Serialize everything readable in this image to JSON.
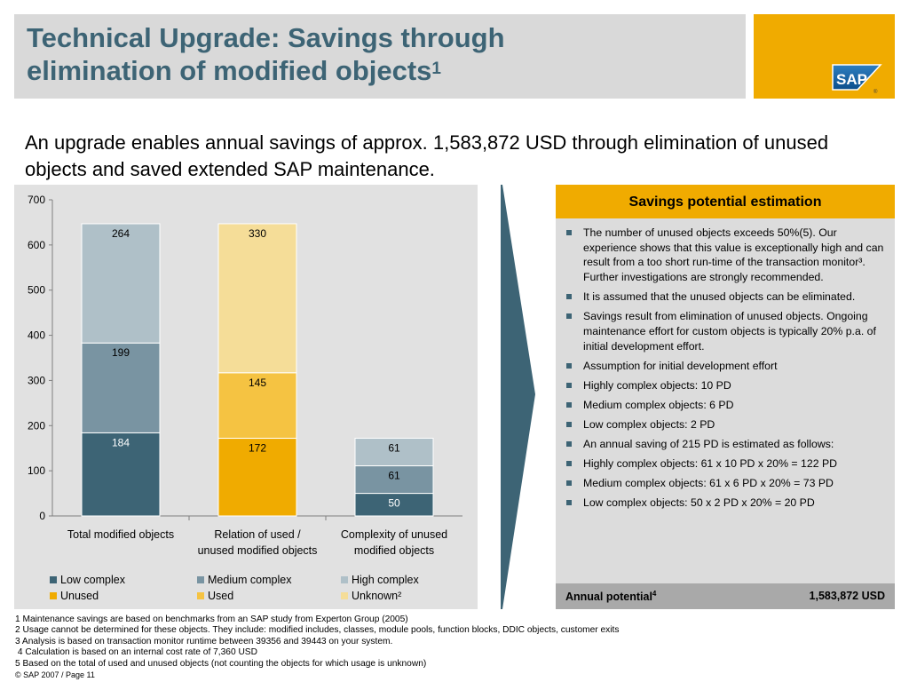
{
  "header": {
    "title_line1": "Technical Upgrade: Savings through",
    "title_line2": "elimination of modified objects",
    "title_sup": "1",
    "logo_text": "SAP",
    "logo_mark": "®"
  },
  "subtitle": "An upgrade enables annual savings of approx. 1,583,872 USD through elimination of unused objects and saved extended SAP maintenance.",
  "chart_data": {
    "type": "bar",
    "stacked": true,
    "categories": [
      [
        "Total modified objects"
      ],
      [
        "Relation of used /",
        "unused modified objects"
      ],
      [
        "Complexity of unused",
        "modified objects"
      ]
    ],
    "ylim": [
      0,
      700
    ],
    "yticks": [
      0,
      100,
      200,
      300,
      400,
      500,
      600,
      700
    ],
    "series": [
      {
        "name": "Low complex",
        "color": "#3d6475",
        "label_color": "#ffffff",
        "values": [
          184,
          null,
          50
        ]
      },
      {
        "name": "Medium complex",
        "color": "#7994a2",
        "label_color": "#000000",
        "values": [
          199,
          null,
          61
        ]
      },
      {
        "name": "High complex",
        "color": "#afc0c8",
        "label_color": "#000000",
        "values": [
          264,
          null,
          61
        ]
      },
      {
        "name": "Unused",
        "color": "#f0ab00",
        "label_color": "#000000",
        "values": [
          null,
          172,
          null
        ]
      },
      {
        "name": "Used",
        "color": "#f5c342",
        "label_color": "#000000",
        "values": [
          null,
          145,
          null
        ]
      },
      {
        "name": "Unknown²",
        "color": "#f5dd98",
        "label_color": "#000000",
        "values": [
          null,
          330,
          null
        ]
      }
    ],
    "legend_position": "bottom",
    "grid": false
  },
  "panel": {
    "header": "Savings potential estimation",
    "bullets": [
      "The number of unused objects exceeds 50%(5). Our experience shows that this value is exceptionally high and can result from a too short run-time of the transaction monitor³. Further investigations are strongly recommended.",
      "It is assumed that the unused objects can be eliminated.",
      "Savings result from elimination of unused objects. Ongoing maintenance effort for custom objects is typically 20% p.a. of initial development effort.",
      "Assumption for initial development effort",
      "Highly complex objects: 10 PD",
      "Medium complex objects: 6 PD",
      "Low complex objects: 2 PD",
      "An annual saving of 215 PD is estimated as follows:",
      "Highly complex objects: 61 x 10 PD x 20% = 122 PD",
      "Medium complex objects: 61 x 6 PD x 20% = 73 PD",
      "Low complex objects: 50 x 2 PD x 20% = 20 PD"
    ],
    "annual_label": "Annual potential",
    "annual_sup": "4",
    "annual_value": "1,583,872 USD"
  },
  "colors": {
    "accent": "#f0ab00",
    "title": "#3d6475",
    "arrow": "#3d6475"
  },
  "footnotes": [
    "1 Maintenance savings are based on benchmarks from an SAP study from Experton Group (2005)",
    "2 Usage cannot be determined for these objects. They include: modified includes, classes, module pools, function blocks, DDIC objects, customer exits",
    "3 Analysis is based on transaction monitor runtime between 39356 and 39443 on your system.",
    " 4 Calculation is based on an internal cost rate of 7,360 USD",
    "5 Based on the total of used and unused objects (not counting the objects for which usage is unknown)"
  ],
  "page_footer": "© SAP 2007 / Page 11"
}
